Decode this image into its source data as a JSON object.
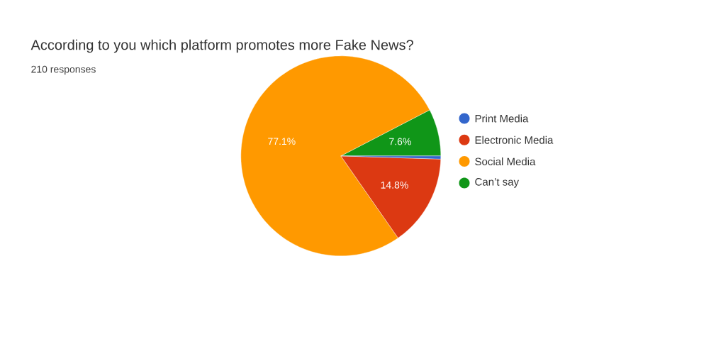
{
  "chart_data": {
    "type": "pie",
    "title": "According to you which platform promotes more Fake News?",
    "subtitle": "210 responses",
    "categories": [
      "Print Media",
      "Electronic Media",
      "Social Media",
      "Can’t say"
    ],
    "values": [
      0.5,
      14.8,
      77.1,
      7.6
    ],
    "colors": [
      "#3366cc",
      "#dc3912",
      "#ff9900",
      "#109618"
    ],
    "value_labels": [
      null,
      "14.8%",
      "77.1%",
      "7.6%"
    ],
    "legend": "right"
  }
}
